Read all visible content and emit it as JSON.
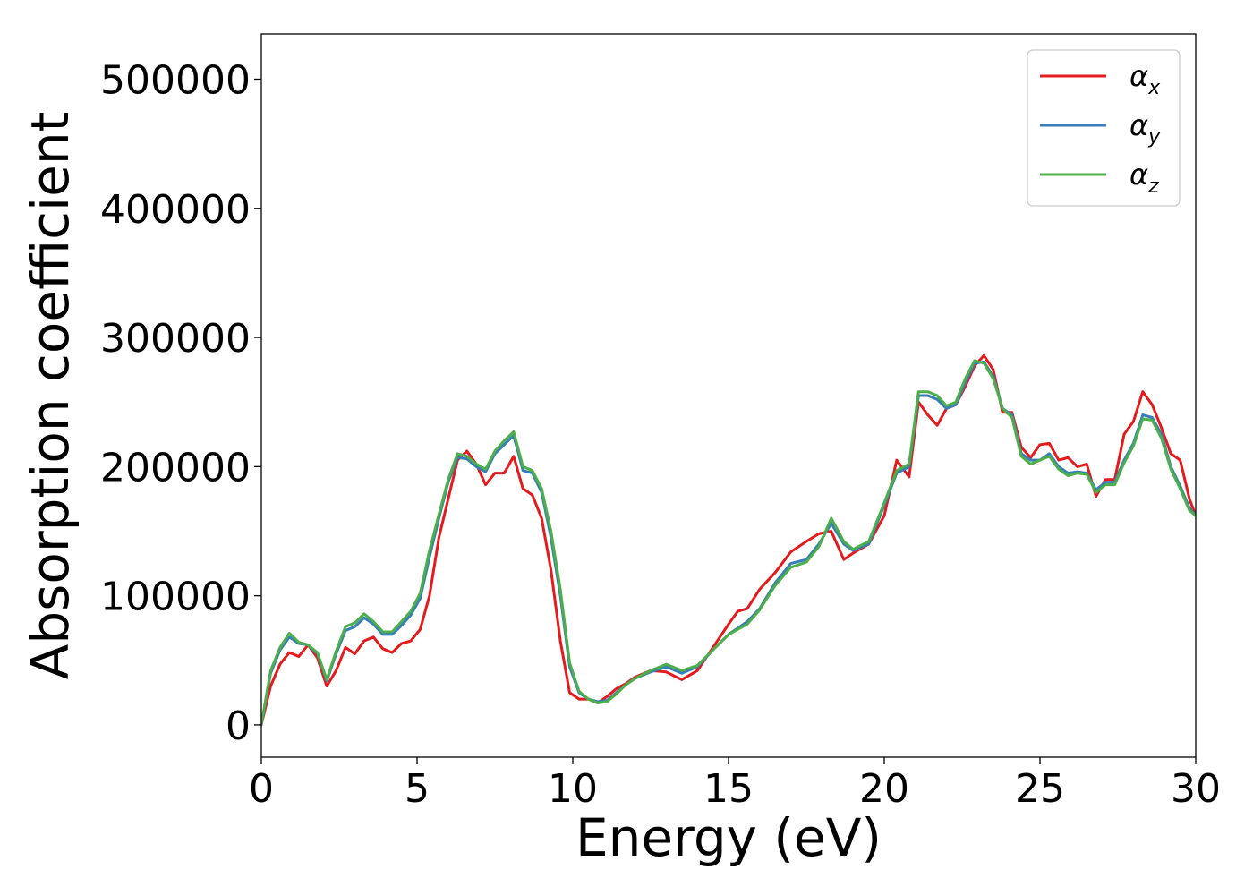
{
  "chart_data": {
    "type": "line",
    "title": "",
    "xlabel": "Energy (eV)",
    "ylabel": "Absorption coefficient",
    "xlim": [
      0,
      30
    ],
    "ylim": [
      -25000,
      535000
    ],
    "xticks": [
      0,
      5,
      10,
      15,
      20,
      25,
      30
    ],
    "xtick_labels": [
      "0",
      "5",
      "10",
      "15",
      "20",
      "25",
      "30"
    ],
    "yticks": [
      0,
      100000,
      200000,
      300000,
      400000,
      500000
    ],
    "ytick_labels": [
      "0",
      "100000",
      "200000",
      "300000",
      "400000",
      "500000"
    ],
    "grid": false,
    "legend_position": "top-right",
    "series": [
      {
        "name": "α_x",
        "legend_symbol": "α",
        "legend_subscript": "x",
        "color": "#e41a1c",
        "x": [
          0,
          0.3,
          0.6,
          0.9,
          1.2,
          1.5,
          1.8,
          2.1,
          2.4,
          2.7,
          3.0,
          3.3,
          3.6,
          3.9,
          4.2,
          4.5,
          4.8,
          5.1,
          5.4,
          5.7,
          6.0,
          6.3,
          6.6,
          6.9,
          7.2,
          7.5,
          7.8,
          8.1,
          8.4,
          8.7,
          9.0,
          9.3,
          9.6,
          9.9,
          10.2,
          10.5,
          10.8,
          11.1,
          11.4,
          11.7,
          12.0,
          12.5,
          13.0,
          13.5,
          14.0,
          14.5,
          15.0,
          15.3,
          15.6,
          16.0,
          16.5,
          17.0,
          17.5,
          17.9,
          18.3,
          18.7,
          19.0,
          19.5,
          20.0,
          20.4,
          20.8,
          21.1,
          21.4,
          21.7,
          22.0,
          22.3,
          22.6,
          22.9,
          23.2,
          23.5,
          23.8,
          24.1,
          24.4,
          24.7,
          25.0,
          25.3,
          25.6,
          25.9,
          26.2,
          26.5,
          26.8,
          27.1,
          27.4,
          27.7,
          28.0,
          28.3,
          28.6,
          28.9,
          29.2,
          29.5,
          29.8,
          30.0
        ],
        "values": [
          0,
          30000,
          47000,
          56000,
          53000,
          62000,
          52000,
          30000,
          42000,
          60000,
          55000,
          65000,
          68000,
          59000,
          56000,
          63000,
          65000,
          74000,
          100000,
          145000,
          175000,
          205000,
          212000,
          202000,
          186000,
          195000,
          195000,
          208000,
          183000,
          178000,
          160000,
          120000,
          65000,
          25000,
          20000,
          20000,
          17000,
          22000,
          28000,
          32000,
          37000,
          42000,
          41000,
          35000,
          42000,
          60000,
          78000,
          88000,
          90000,
          105000,
          118000,
          134000,
          142000,
          148000,
          150000,
          128000,
          133000,
          140000,
          162000,
          205000,
          192000,
          250000,
          240000,
          232000,
          245000,
          248000,
          262000,
          278000,
          286000,
          275000,
          242000,
          242000,
          215000,
          207000,
          217000,
          218000,
          205000,
          207000,
          200000,
          202000,
          177000,
          190000,
          190000,
          225000,
          235000,
          258000,
          248000,
          230000,
          210000,
          205000,
          175000,
          162000
        ]
      },
      {
        "name": "α_y",
        "legend_symbol": "α",
        "legend_subscript": "y",
        "color": "#377eb8",
        "x": [
          0,
          0.3,
          0.6,
          0.9,
          1.2,
          1.5,
          1.8,
          2.1,
          2.4,
          2.7,
          3.0,
          3.3,
          3.6,
          3.9,
          4.2,
          4.5,
          4.8,
          5.1,
          5.4,
          5.7,
          6.0,
          6.3,
          6.6,
          6.9,
          7.2,
          7.5,
          7.8,
          8.1,
          8.4,
          8.7,
          9.0,
          9.3,
          9.6,
          9.9,
          10.2,
          10.5,
          10.8,
          11.1,
          11.4,
          11.7,
          12.0,
          12.5,
          13.0,
          13.5,
          14.0,
          14.5,
          15.0,
          15.3,
          15.6,
          16.0,
          16.5,
          17.0,
          17.5,
          17.9,
          18.3,
          18.7,
          19.0,
          19.5,
          20.0,
          20.4,
          20.8,
          21.1,
          21.4,
          21.7,
          22.0,
          22.3,
          22.6,
          22.9,
          23.2,
          23.5,
          23.8,
          24.1,
          24.4,
          24.7,
          25.0,
          25.3,
          25.6,
          25.9,
          26.2,
          26.5,
          26.8,
          27.1,
          27.4,
          27.7,
          28.0,
          28.3,
          28.6,
          28.9,
          29.2,
          29.5,
          29.8,
          30.0
        ],
        "values": [
          0,
          40000,
          58000,
          68000,
          63000,
          62000,
          55000,
          34000,
          55000,
          73000,
          76000,
          83000,
          78000,
          70000,
          70000,
          77000,
          85000,
          98000,
          130000,
          160000,
          188000,
          207000,
          206000,
          200000,
          196000,
          210000,
          217000,
          224000,
          197000,
          195000,
          180000,
          145000,
          100000,
          45000,
          25000,
          20000,
          18000,
          19000,
          25000,
          31000,
          36000,
          41000,
          45000,
          40000,
          45000,
          58000,
          70000,
          75000,
          80000,
          90000,
          110000,
          125000,
          128000,
          140000,
          156000,
          140000,
          135000,
          140000,
          170000,
          195000,
          200000,
          255000,
          255000,
          252000,
          245000,
          248000,
          265000,
          280000,
          281000,
          270000,
          245000,
          240000,
          210000,
          205000,
          205000,
          210000,
          200000,
          195000,
          196000,
          195000,
          182000,
          188000,
          188000,
          205000,
          218000,
          240000,
          238000,
          225000,
          200000,
          185000,
          168000,
          162000
        ]
      },
      {
        "name": "α_z",
        "legend_symbol": "α",
        "legend_subscript": "z",
        "color": "#4daf4a",
        "x": [
          0,
          0.3,
          0.6,
          0.9,
          1.2,
          1.5,
          1.8,
          2.1,
          2.4,
          2.7,
          3.0,
          3.3,
          3.6,
          3.9,
          4.2,
          4.5,
          4.8,
          5.1,
          5.4,
          5.7,
          6.0,
          6.3,
          6.6,
          6.9,
          7.2,
          7.5,
          7.8,
          8.1,
          8.4,
          8.7,
          9.0,
          9.3,
          9.6,
          9.9,
          10.2,
          10.5,
          10.8,
          11.1,
          11.4,
          11.7,
          12.0,
          12.5,
          13.0,
          13.5,
          14.0,
          14.5,
          15.0,
          15.3,
          15.6,
          16.0,
          16.5,
          17.0,
          17.5,
          17.9,
          18.3,
          18.7,
          19.0,
          19.5,
          20.0,
          20.4,
          20.8,
          21.1,
          21.4,
          21.7,
          22.0,
          22.3,
          22.6,
          22.9,
          23.2,
          23.5,
          23.8,
          24.1,
          24.4,
          24.7,
          25.0,
          25.3,
          25.6,
          25.9,
          26.2,
          26.5,
          26.8,
          27.1,
          27.4,
          27.7,
          28.0,
          28.3,
          28.6,
          28.9,
          29.2,
          29.5,
          29.8,
          30.0
        ],
        "values": [
          0,
          42000,
          60000,
          71000,
          64000,
          62000,
          56000,
          35000,
          57000,
          76000,
          79000,
          86000,
          80000,
          72000,
          72000,
          80000,
          88000,
          102000,
          135000,
          163000,
          190000,
          210000,
          208000,
          202000,
          198000,
          212000,
          220000,
          227000,
          200000,
          197000,
          183000,
          150000,
          105000,
          48000,
          26000,
          20000,
          17000,
          18000,
          24000,
          31000,
          36000,
          42000,
          47000,
          42000,
          46000,
          58000,
          70000,
          74000,
          78000,
          89000,
          108000,
          122000,
          126000,
          138000,
          160000,
          142000,
          136000,
          142000,
          172000,
          197000,
          202000,
          258000,
          258000,
          255000,
          247000,
          250000,
          268000,
          282000,
          280000,
          268000,
          245000,
          238000,
          208000,
          202000,
          205000,
          208000,
          198000,
          193000,
          195000,
          194000,
          180000,
          186000,
          186000,
          203000,
          216000,
          237000,
          236000,
          222000,
          198000,
          183000,
          166000,
          162000
        ]
      }
    ]
  }
}
